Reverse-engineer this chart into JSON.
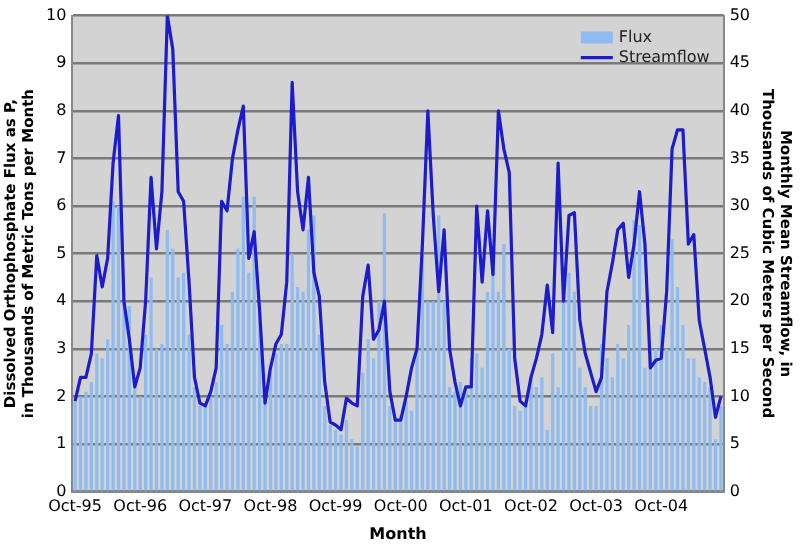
{
  "chart_data": {
    "type": "bar",
    "xlabel": "Month",
    "ylabel": "Dissolved Orthophosphate Flux as P, in Thousands of Metric Tons per Month",
    "y2label": "Monthly Mean Streamflow, in Thousands of Cubic Meters per Second",
    "categories": [
      "Oct-95",
      null,
      null,
      null,
      null,
      null,
      null,
      null,
      null,
      null,
      null,
      null,
      "Oct-96",
      null,
      null,
      null,
      null,
      null,
      null,
      null,
      null,
      null,
      null,
      null,
      "Oct-97",
      null,
      null,
      null,
      null,
      null,
      null,
      null,
      null,
      null,
      null,
      null,
      "Oct-98",
      null,
      null,
      null,
      null,
      null,
      null,
      null,
      null,
      null,
      null,
      null,
      "Oct-99",
      null,
      null,
      null,
      null,
      null,
      null,
      null,
      null,
      null,
      null,
      null,
      "Oct-00",
      null,
      null,
      null,
      null,
      null,
      null,
      null,
      null,
      null,
      null,
      null,
      "Oct-01",
      null,
      null,
      null,
      null,
      null,
      null,
      null,
      null,
      null,
      null,
      null,
      "Oct-02",
      null,
      null,
      null,
      null,
      null,
      null,
      null,
      null,
      null,
      null,
      null,
      "Oct-03",
      null,
      null,
      null,
      null,
      null,
      null,
      null,
      null,
      null,
      null,
      null,
      "Oct-04",
      null,
      null,
      null,
      null,
      null,
      null,
      null,
      null,
      null,
      null,
      null
    ],
    "series": [
      {
        "name": "Flux",
        "color": "#8fbcf0",
        "values": [
          1.9,
          2.0,
          2.1,
          2.3,
          2.9,
          2.8,
          3.2,
          6.1,
          6.0,
          4.0,
          3.9,
          2.3,
          2.0,
          3.3,
          4.5,
          3.0,
          3.1,
          5.5,
          5.1,
          4.5,
          4.6,
          3.3,
          2.2,
          1.8,
          1.8,
          2.0,
          2.3,
          3.5,
          3.1,
          4.2,
          5.1,
          6.2,
          4.6,
          6.2,
          4.0,
          2.0,
          2.5,
          2.9,
          3.1,
          3.1,
          5.0,
          4.3,
          4.2,
          5.5,
          5.8,
          3.3,
          1.8,
          1.4,
          1.3,
          1.2,
          1.5,
          1.1,
          0.95,
          2.5,
          3.2,
          2.8,
          4.0,
          5.85,
          1.8,
          1.5,
          1.6,
          1.9,
          1.7,
          3.0,
          5.2,
          4.0,
          4.0,
          5.8,
          4.0,
          2.2,
          2.1,
          2.3,
          2.2,
          2.8,
          2.9,
          2.6,
          4.2,
          5.2,
          4.2,
          5.2,
          3.0,
          1.8,
          1.7,
          1.9,
          2.4,
          2.2,
          2.4,
          1.3,
          2.9,
          2.2,
          4.0,
          4.6,
          4.2,
          2.6,
          2.2,
          1.8,
          1.8,
          3.1,
          2.8,
          2.4,
          3.1,
          2.8,
          3.5,
          5.7,
          5.6,
          2.6,
          3.0,
          3.0,
          3.5,
          3.0,
          5.3,
          4.3,
          3.5,
          2.8,
          2.8,
          2.4,
          2.3,
          2.2,
          1.1,
          1.8
        ]
      },
      {
        "name": "Streamflow",
        "type": "line",
        "axis": "y2",
        "color": "#1c1ccc",
        "values": [
          9.5,
          12,
          12,
          14.5,
          24.8,
          21.5,
          24.5,
          34.5,
          39.5,
          20,
          16,
          11,
          13,
          20,
          33,
          25.5,
          31.5,
          50,
          46.5,
          31.5,
          30.5,
          22,
          12,
          9.3,
          9,
          10.5,
          13,
          30.5,
          29.5,
          35,
          38,
          40.5,
          24.5,
          27.3,
          19,
          9.3,
          13,
          15.5,
          16.5,
          22,
          43,
          31.5,
          27.5,
          33,
          23,
          20.5,
          11.5,
          7.3,
          7,
          6.5,
          9.8,
          9.3,
          9,
          20.5,
          23.8,
          16,
          17,
          20,
          10.5,
          7.5,
          7.5,
          10,
          13,
          15,
          26,
          40,
          29,
          21,
          27.5,
          15,
          11.5,
          9,
          11,
          11,
          30,
          22,
          29.5,
          22.8,
          40,
          36,
          33.5,
          14,
          9.5,
          9,
          12,
          14,
          16.5,
          21.7,
          16.7,
          34.5,
          20,
          29,
          29.3,
          18,
          14.5,
          12.5,
          10.5,
          12,
          21,
          24,
          27.5,
          28.2,
          22.5,
          26,
          31.5,
          26,
          13,
          13.8,
          14,
          21,
          36,
          38,
          38,
          26,
          27,
          18,
          15,
          12,
          7.8,
          10
        ]
      }
    ],
    "ylim": [
      0,
      10
    ],
    "yticks": [
      0,
      1,
      2,
      3,
      4,
      5,
      6,
      7,
      8,
      9,
      10
    ],
    "y2lim": [
      0,
      50
    ],
    "y2ticks": [
      0,
      5,
      10,
      15,
      20,
      25,
      30,
      35,
      40,
      45,
      50
    ],
    "grid": "y",
    "legend": "top right"
  }
}
